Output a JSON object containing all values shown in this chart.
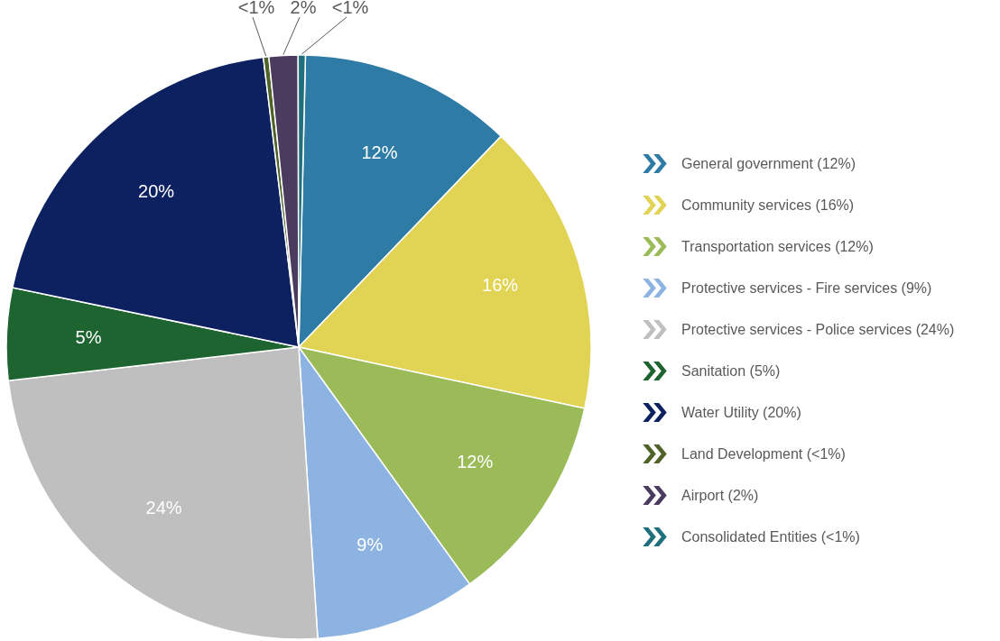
{
  "chart_data": {
    "type": "pie",
    "categories": [
      "General government (12%)",
      "Community services (16%)",
      "Transportation services (12%)",
      "Protective services - Fire services (9%)",
      "Protective services - Police services (24%)",
      "Sanitation  (5%)",
      "Water Utility (20%)",
      "Land Development (<1%)",
      "Airport (2%)",
      "Consolidated Entities (<1%)"
    ],
    "values": [
      11.8,
      16.2,
      11.7,
      8.9,
      24.2,
      5.1,
      19.8,
      0.3,
      1.6,
      0.4
    ],
    "value_labels": [
      "12%",
      "16%",
      "12%",
      "9%",
      "24%",
      "5%",
      "20%",
      "<1%",
      "2%",
      "<1%"
    ],
    "colors": [
      "#2e7ca6",
      "#e1d353",
      "#9bbb59",
      "#8db3e2",
      "#bfbfbf",
      "#1e6430",
      "#0d2160",
      "#4f6228",
      "#4a3b5f",
      "#1f6f7d"
    ],
    "legend": "right"
  }
}
